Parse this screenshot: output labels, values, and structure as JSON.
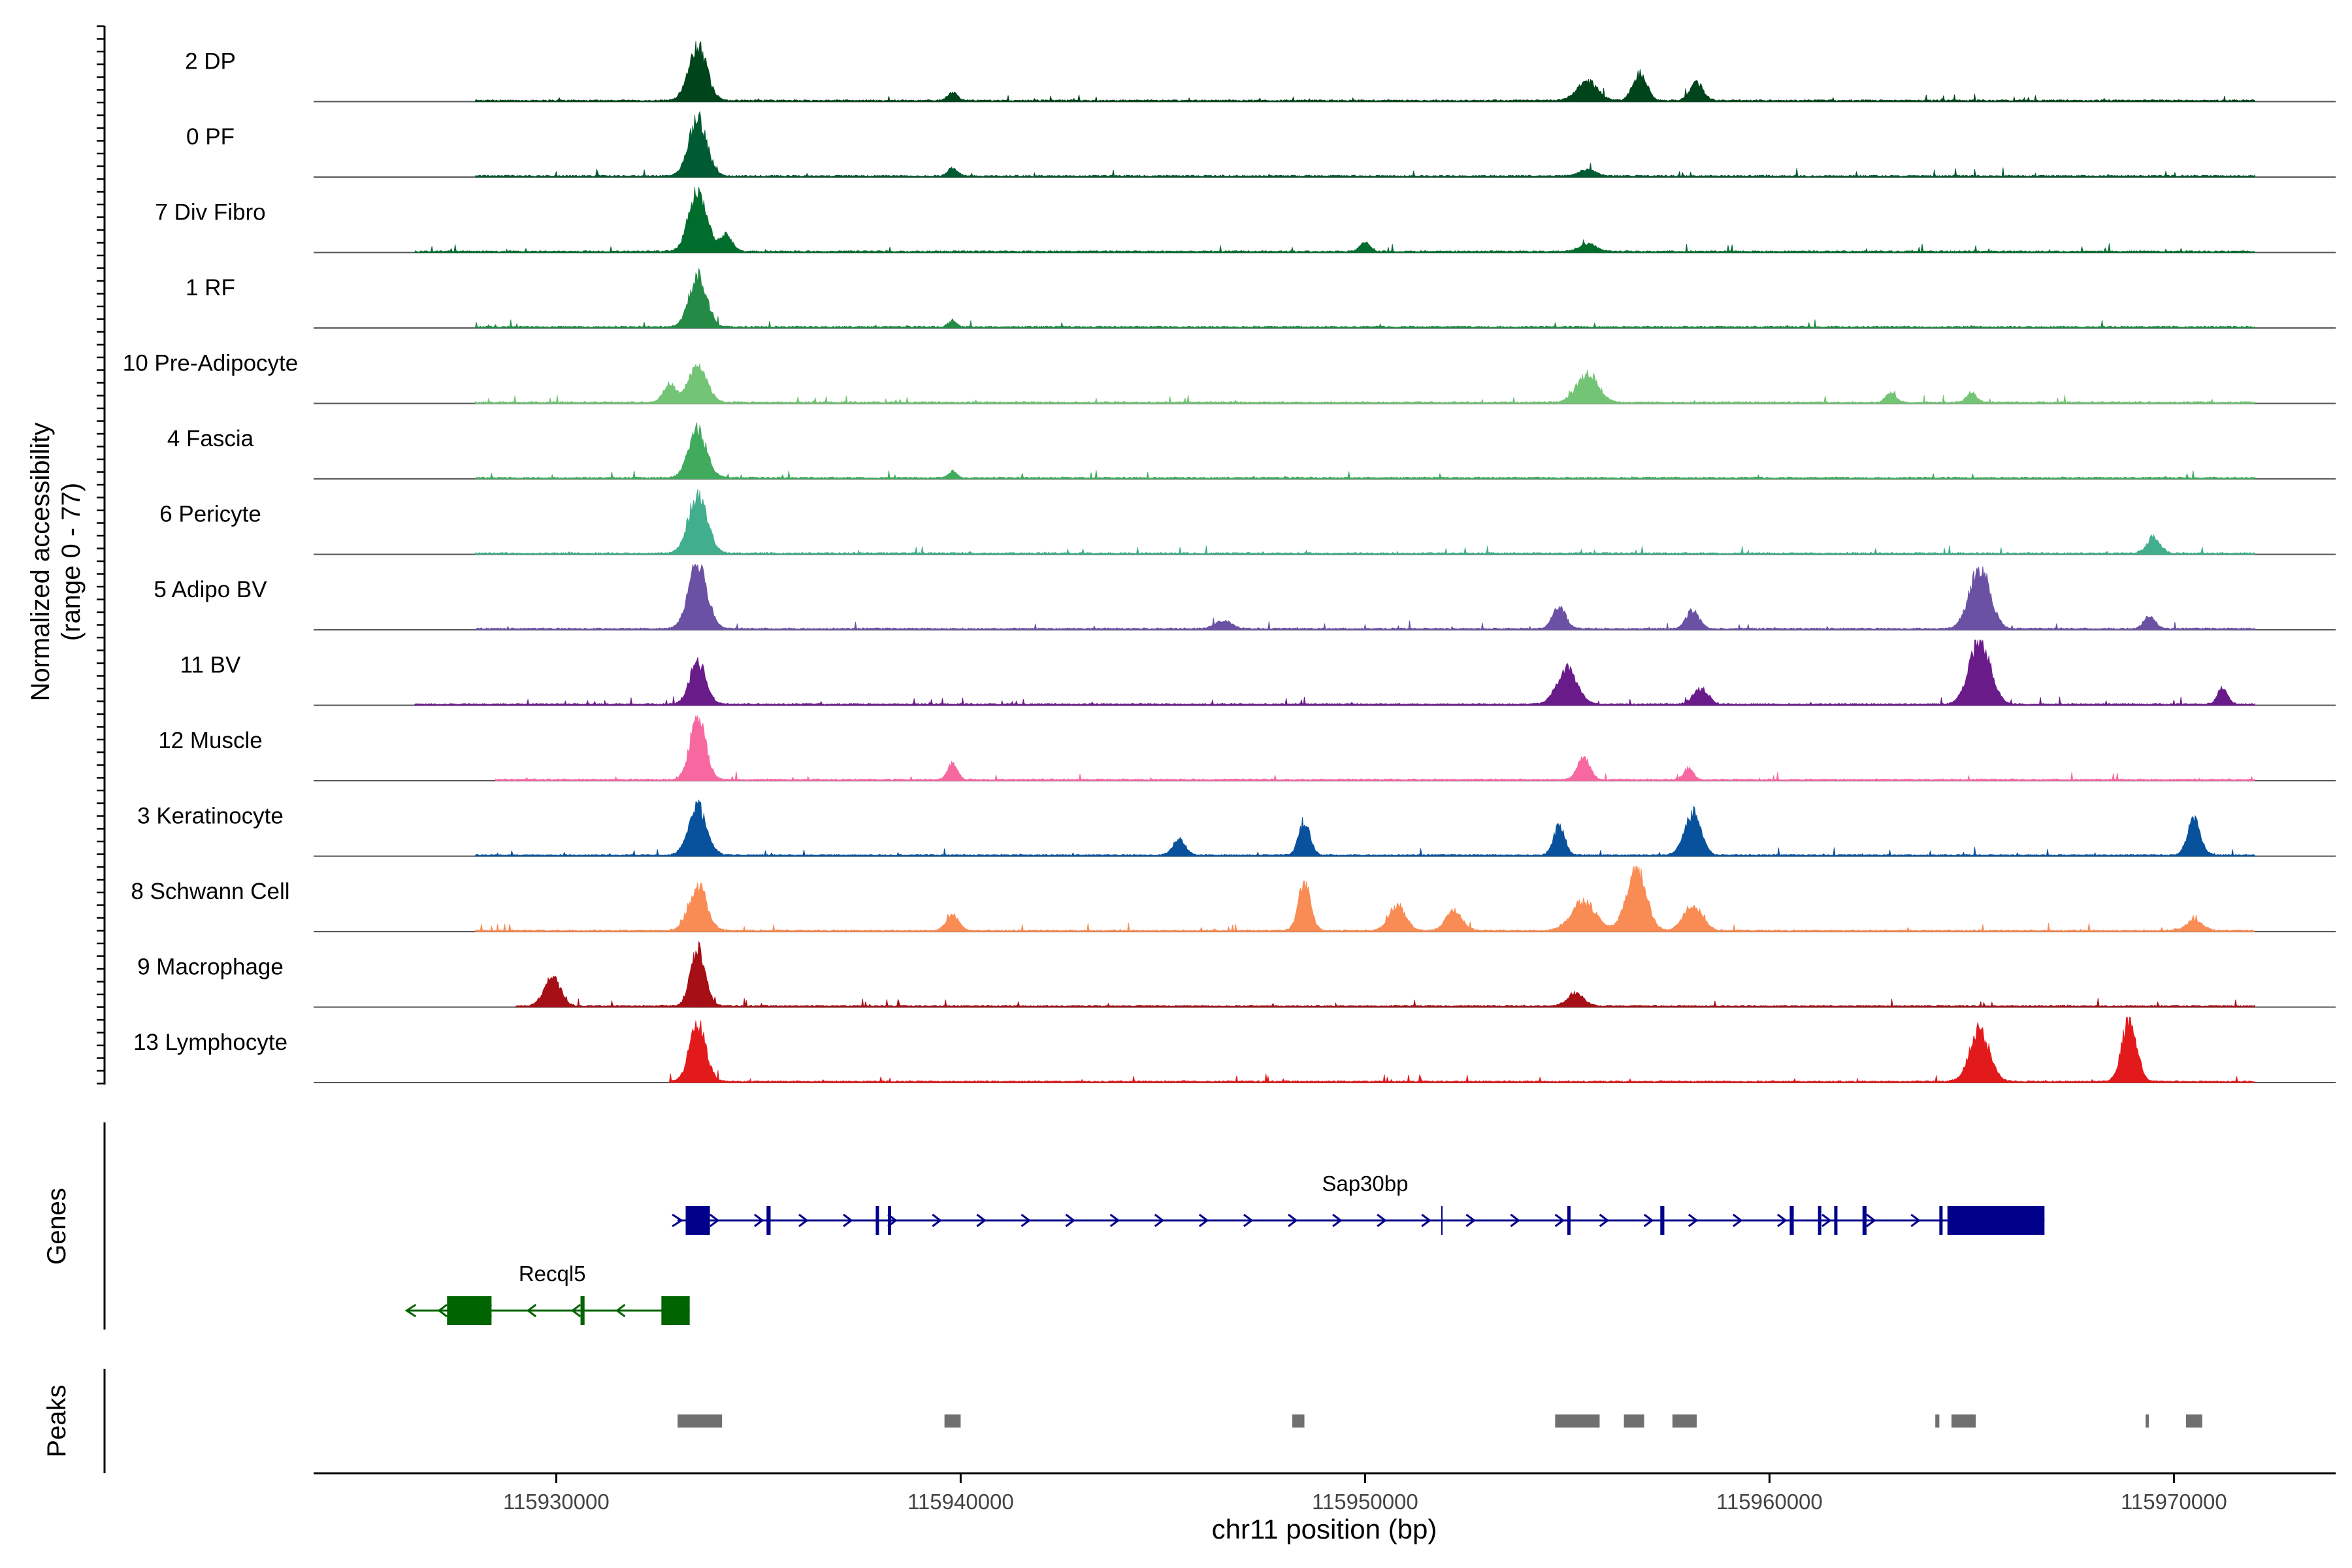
{
  "chart_data": {
    "type": "area",
    "title": "",
    "xlabel": "chr11 position (bp)",
    "ylabel_line1": "Normalized accessibility",
    "ylabel_line2": "(range 0 - 77)",
    "yrange": [
      0,
      77
    ],
    "xlim": [
      115924000,
      115974000
    ],
    "x_ticks": [
      115930000,
      115940000,
      115950000,
      115960000,
      115970000
    ],
    "x_tick_labels": [
      "115930000",
      "115940000",
      "115950000",
      "115960000",
      "115970000"
    ],
    "track_labels": {
      "genes": "Genes",
      "peaks": "Peaks"
    },
    "series": [
      {
        "name": "2 DP",
        "color": "#00441b",
        "range": [
          115928000,
          115972000
        ],
        "peaks": [
          [
            115933500,
            0.85,
            220
          ],
          [
            115939800,
            0.12,
            120
          ],
          [
            115955500,
            0.3,
            250
          ],
          [
            115956800,
            0.42,
            170
          ],
          [
            115958200,
            0.28,
            160
          ]
        ]
      },
      {
        "name": "0 PF",
        "color": "#005a32",
        "range": [
          115928000,
          115972000
        ],
        "peaks": [
          [
            115933500,
            0.9,
            220
          ],
          [
            115939800,
            0.12,
            120
          ],
          [
            115955500,
            0.1,
            200
          ]
        ]
      },
      {
        "name": "7 Div Fibro",
        "color": "#006d2c",
        "range": [
          115926500,
          115972000
        ],
        "peaks": [
          [
            115933500,
            0.95,
            220
          ],
          [
            115934200,
            0.25,
            150
          ],
          [
            115950000,
            0.14,
            120
          ],
          [
            115955500,
            0.12,
            200
          ]
        ]
      },
      {
        "name": "1 RF",
        "color": "#238b45",
        "range": [
          115928000,
          115972000
        ],
        "peaks": [
          [
            115933500,
            0.8,
            210
          ],
          [
            115939800,
            0.1,
            100
          ]
        ]
      },
      {
        "name": "10 Pre-Adipocyte",
        "color": "#74c476",
        "range": [
          115928000,
          115972000
        ],
        "peaks": [
          [
            115933500,
            0.6,
            220
          ],
          [
            115932800,
            0.3,
            150
          ],
          [
            115955500,
            0.45,
            260
          ],
          [
            115963000,
            0.15,
            120
          ],
          [
            115965000,
            0.15,
            120
          ]
        ]
      },
      {
        "name": "4 Fascia",
        "color": "#41ab5d",
        "range": [
          115928000,
          115972000
        ],
        "peaks": [
          [
            115933500,
            0.75,
            220
          ],
          [
            115939800,
            0.1,
            100
          ]
        ]
      },
      {
        "name": "6 Pericyte",
        "color": "#41ae8d",
        "range": [
          115928000,
          115972000
        ],
        "peaks": [
          [
            115933500,
            0.9,
            230
          ],
          [
            115969500,
            0.25,
            160
          ]
        ]
      },
      {
        "name": "5 Adipo BV",
        "color": "#6a51a3",
        "range": [
          115928000,
          115972000
        ],
        "peaks": [
          [
            115933500,
            1.0,
            230
          ],
          [
            115946500,
            0.12,
            200
          ],
          [
            115954800,
            0.35,
            160
          ],
          [
            115958100,
            0.28,
            160
          ],
          [
            115965200,
            0.95,
            250
          ],
          [
            115969400,
            0.2,
            140
          ]
        ]
      },
      {
        "name": "11 BV",
        "color": "#6a1b8a",
        "range": [
          115926500,
          115972000
        ],
        "peaks": [
          [
            115933500,
            0.65,
            200
          ],
          [
            115955000,
            0.55,
            250
          ],
          [
            115958300,
            0.25,
            180
          ],
          [
            115965200,
            1.0,
            260
          ],
          [
            115971200,
            0.25,
            120
          ]
        ]
      },
      {
        "name": "12 Muscle",
        "color": "#f768a1",
        "range": [
          115928500,
          115972000
        ],
        "peaks": [
          [
            115933500,
            1.0,
            190
          ],
          [
            115939800,
            0.25,
            120
          ],
          [
            115955400,
            0.35,
            150
          ],
          [
            115958000,
            0.18,
            120
          ]
        ]
      },
      {
        "name": "3 Keratinocyte",
        "color": "#08519c",
        "range": [
          115928000,
          115972000
        ],
        "peaks": [
          [
            115933500,
            0.75,
            220
          ],
          [
            115945400,
            0.25,
            150
          ],
          [
            115948500,
            0.5,
            140
          ],
          [
            115954800,
            0.45,
            140
          ],
          [
            115958100,
            0.65,
            200
          ],
          [
            115970500,
            0.55,
            160
          ]
        ]
      },
      {
        "name": "8 Schwann Cell",
        "color": "#f98c54",
        "range": [
          115928000,
          115972000
        ],
        "peaks": [
          [
            115933500,
            0.7,
            220
          ],
          [
            115939800,
            0.25,
            150
          ],
          [
            115948500,
            0.75,
            150
          ],
          [
            115950800,
            0.4,
            200
          ],
          [
            115952200,
            0.3,
            200
          ],
          [
            115955400,
            0.45,
            300
          ],
          [
            115956700,
            1.0,
            240
          ],
          [
            115958100,
            0.4,
            230
          ],
          [
            115970500,
            0.15,
            200
          ]
        ]
      },
      {
        "name": "9 Macrophage",
        "color": "#a50f15",
        "range": [
          115929000,
          115972000
        ],
        "peaks": [
          [
            115929900,
            0.45,
            200
          ],
          [
            115933500,
            0.9,
            180
          ],
          [
            115955200,
            0.2,
            200
          ]
        ]
      },
      {
        "name": "13 Lymphocyte",
        "color": "#e31a1c",
        "range": [
          115932800,
          115972000
        ],
        "peaks": [
          [
            115933500,
            0.9,
            200
          ],
          [
            115965200,
            0.8,
            240
          ],
          [
            115968900,
            1.0,
            180
          ]
        ]
      }
    ],
    "genes": [
      {
        "name": "Sap30bp",
        "strand": "+",
        "start": 115933000,
        "end": 115966800,
        "color": "#00008b",
        "tss": 115933000,
        "exons": [
          [
            115933200,
            115933800
          ],
          [
            115935200,
            115935300
          ],
          [
            115937900,
            115937950
          ],
          [
            115938200,
            115938250
          ],
          [
            115955000,
            115955050
          ],
          [
            115957300,
            115957400
          ],
          [
            115960500,
            115960600
          ],
          [
            115961200,
            115961250
          ],
          [
            115961600,
            115961650
          ],
          [
            115962300,
            115962400
          ],
          [
            115964200,
            115964280
          ],
          [
            115964400,
            115966800
          ]
        ],
        "utr": [
          [
            115951900,
            115951950
          ]
        ]
      },
      {
        "name": "Recql5",
        "strand": "-",
        "start": 115926300,
        "end": 115933300,
        "color": "#006400",
        "tss": 115933300,
        "exons": [
          [
            115927300,
            115928400
          ],
          [
            115930600,
            115930700
          ],
          [
            115932600,
            115933300
          ]
        ]
      }
    ],
    "peaks_track": [
      [
        115933000,
        115934100
      ],
      [
        115939600,
        115940000
      ],
      [
        115948200,
        115948500
      ],
      [
        115954700,
        115955800
      ],
      [
        115956400,
        115956900
      ],
      [
        115957600,
        115958200
      ],
      [
        115964100,
        115964200
      ],
      [
        115964500,
        115965100
      ],
      [
        115969300,
        115969380
      ],
      [
        115970300,
        115970700
      ]
    ]
  }
}
